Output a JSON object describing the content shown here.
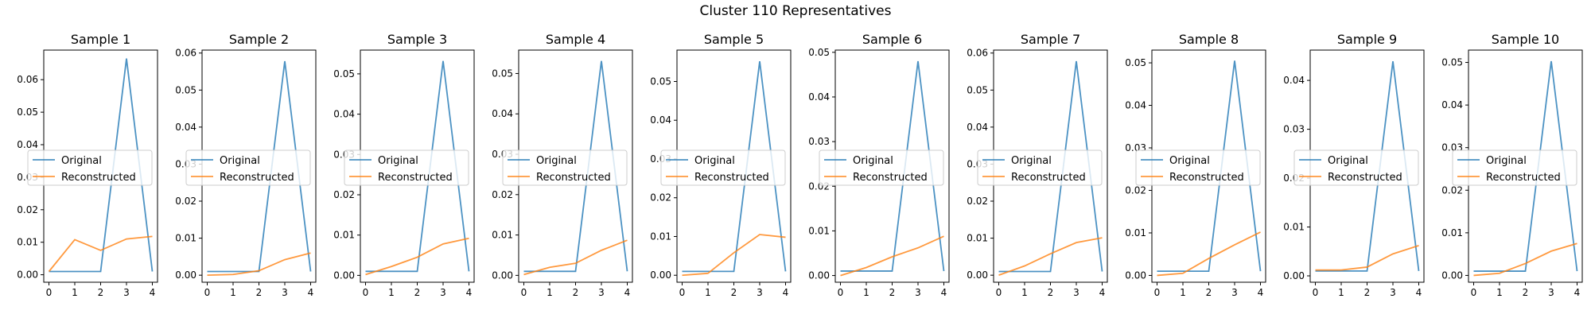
{
  "suptitle": "Cluster 110 Representatives",
  "colors": {
    "original": "#1f77b4",
    "reconstructed": "#ff7f0e"
  },
  "chart_data": [
    {
      "type": "line",
      "title": "Sample 1",
      "x": [
        0,
        1,
        2,
        3,
        4
      ],
      "ylim": [
        -0.0023,
        0.0691
      ],
      "yticks": [
        0.0,
        0.01,
        0.02,
        0.03,
        0.04,
        0.05,
        0.06
      ],
      "series": [
        {
          "name": "Original",
          "values": [
            0.001,
            0.001,
            0.001,
            0.0665,
            0.001
          ]
        },
        {
          "name": "Reconstructed",
          "values": [
            0.001,
            0.0108,
            0.0075,
            0.011,
            0.0118
          ]
        }
      ]
    },
    {
      "type": "line",
      "title": "Sample 2",
      "x": [
        0,
        1,
        2,
        3,
        4
      ],
      "ylim": [
        -0.0019,
        0.0608
      ],
      "yticks": [
        0.0,
        0.01,
        0.02,
        0.03,
        0.04,
        0.05,
        0.06
      ],
      "series": [
        {
          "name": "Original",
          "values": [
            0.001,
            0.001,
            0.001,
            0.0578,
            0.001
          ]
        },
        {
          "name": "Reconstructed",
          "values": [
            0.0,
            0.0002,
            0.0012,
            0.0042,
            0.006
          ]
        }
      ]
    },
    {
      "type": "line",
      "title": "Sample 3",
      "x": [
        0,
        1,
        2,
        3,
        4
      ],
      "ylim": [
        -0.0017,
        0.0559
      ],
      "yticks": [
        0.0,
        0.01,
        0.02,
        0.03,
        0.04,
        0.05
      ],
      "series": [
        {
          "name": "Original",
          "values": [
            0.001,
            0.001,
            0.001,
            0.0532,
            0.001
          ]
        },
        {
          "name": "Reconstructed",
          "values": [
            0.0002,
            0.0022,
            0.0045,
            0.0078,
            0.0092
          ]
        }
      ]
    },
    {
      "type": "line",
      "title": "Sample 4",
      "x": [
        0,
        1,
        2,
        3,
        4
      ],
      "ylim": [
        -0.0017,
        0.0558
      ],
      "yticks": [
        0.0,
        0.01,
        0.02,
        0.03,
        0.04,
        0.05
      ],
      "series": [
        {
          "name": "Original",
          "values": [
            0.001,
            0.001,
            0.001,
            0.0531,
            0.001
          ]
        },
        {
          "name": "Reconstructed",
          "values": [
            0.0002,
            0.002,
            0.003,
            0.0062,
            0.0087
          ]
        }
      ]
    },
    {
      "type": "line",
      "title": "Sample 5",
      "x": [
        0,
        1,
        2,
        3,
        4
      ],
      "ylim": [
        -0.0018,
        0.0581
      ],
      "yticks": [
        0.0,
        0.01,
        0.02,
        0.03,
        0.04,
        0.05
      ],
      "series": [
        {
          "name": "Original",
          "values": [
            0.001,
            0.001,
            0.001,
            0.0552,
            0.001
          ]
        },
        {
          "name": "Reconstructed",
          "values": [
            0.0,
            0.0005,
            0.0058,
            0.0105,
            0.0098
          ]
        }
      ]
    },
    {
      "type": "line",
      "title": "Sample 6",
      "x": [
        0,
        1,
        2,
        3,
        4
      ],
      "ylim": [
        -0.0015,
        0.0505
      ],
      "yticks": [
        0.0,
        0.01,
        0.02,
        0.03,
        0.04,
        0.05
      ],
      "series": [
        {
          "name": "Original",
          "values": [
            0.001,
            0.001,
            0.001,
            0.048,
            0.001
          ]
        },
        {
          "name": "Reconstructed",
          "values": [
            0.0,
            0.0018,
            0.0042,
            0.0062,
            0.0088
          ]
        }
      ]
    },
    {
      "type": "line",
      "title": "Sample 7",
      "x": [
        0,
        1,
        2,
        3,
        4
      ],
      "ylim": [
        -0.0019,
        0.0608
      ],
      "yticks": [
        0.0,
        0.01,
        0.02,
        0.03,
        0.04,
        0.05,
        0.06
      ],
      "series": [
        {
          "name": "Original",
          "values": [
            0.001,
            0.001,
            0.001,
            0.0578,
            0.001
          ]
        },
        {
          "name": "Reconstructed",
          "values": [
            0.0,
            0.0025,
            0.0058,
            0.0088,
            0.0101
          ]
        }
      ]
    },
    {
      "type": "line",
      "title": "Sample 8",
      "x": [
        0,
        1,
        2,
        3,
        4
      ],
      "ylim": [
        -0.0016,
        0.053
      ],
      "yticks": [
        0.0,
        0.01,
        0.02,
        0.03,
        0.04,
        0.05
      ],
      "series": [
        {
          "name": "Original",
          "values": [
            0.001,
            0.001,
            0.001,
            0.0505,
            0.001
          ]
        },
        {
          "name": "Reconstructed",
          "values": [
            0.0,
            0.0005,
            0.004,
            0.0072,
            0.0102
          ]
        }
      ]
    },
    {
      "type": "line",
      "title": "Sample 9",
      "x": [
        0,
        1,
        2,
        3,
        4
      ],
      "ylim": [
        -0.0013,
        0.0462
      ],
      "yticks": [
        0.0,
        0.01,
        0.02,
        0.03,
        0.04
      ],
      "series": [
        {
          "name": "Original",
          "values": [
            0.001,
            0.001,
            0.001,
            0.0439,
            0.001
          ]
        },
        {
          "name": "Reconstructed",
          "values": [
            0.0012,
            0.0012,
            0.0018,
            0.0045,
            0.0062
          ]
        }
      ]
    },
    {
      "type": "line",
      "title": "Sample 10",
      "x": [
        0,
        1,
        2,
        3,
        4
      ],
      "ylim": [
        -0.0016,
        0.0529
      ],
      "yticks": [
        0.0,
        0.01,
        0.02,
        0.03,
        0.04,
        0.05
      ],
      "series": [
        {
          "name": "Original",
          "values": [
            0.001,
            0.001,
            0.001,
            0.0503,
            0.001
          ]
        },
        {
          "name": "Reconstructed",
          "values": [
            0.0,
            0.0005,
            0.0028,
            0.0057,
            0.0075
          ]
        }
      ]
    }
  ]
}
